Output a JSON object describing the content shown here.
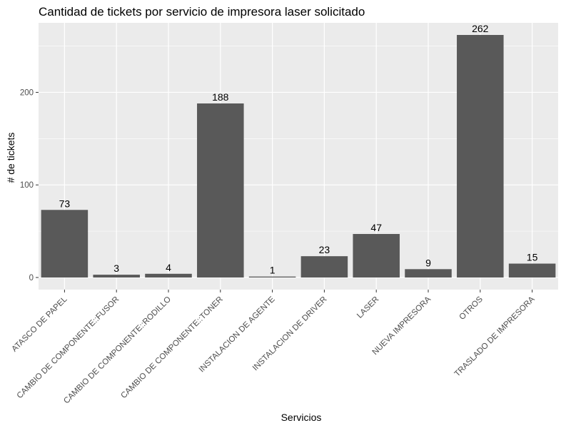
{
  "chart_data": {
    "type": "bar",
    "title": "Cantidad de tickets por servicio de impresora laser solicitado",
    "xlabel": "Servicios",
    "ylabel": "# de tickets",
    "categories": [
      "ATASCO DE PAPEL",
      "CAMBIO DE COMPONENTE::FUSOR",
      "CAMBIO DE COMPONENTE::RODILLO",
      "CAMBIO DE COMPONENTE::TONER",
      "INSTALACION DE AGENTE",
      "INSTALACION DE DRIVER",
      "LASER",
      "NUEVA IMPRESORA",
      "OTROS",
      "TRASLADO DE IMPRESORA"
    ],
    "values": [
      73,
      3,
      4,
      188,
      1,
      23,
      47,
      9,
      262,
      15
    ],
    "ylim": [
      -13.1,
      275.1
    ],
    "yticks": [
      0,
      100,
      200
    ],
    "grid": true,
    "legend": "none",
    "colors": {
      "bar": "#595959",
      "panel": "#ebebeb",
      "grid": "#ffffff",
      "tick": "#333333"
    }
  }
}
